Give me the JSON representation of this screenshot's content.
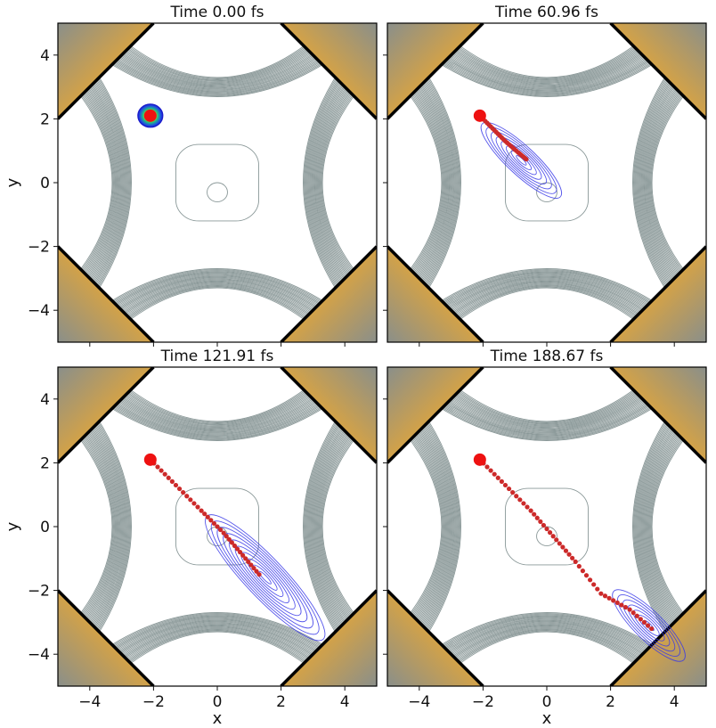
{
  "colors": {
    "contour": "#8a9898",
    "wall": "#000000",
    "wall_fill": "#e8a838",
    "wave_packet": "#3a3ae8",
    "trajectory": "#cc2a2a",
    "frame": "#000000"
  },
  "chart_data": [
    {
      "type": "contour",
      "panel": "top-left",
      "title": "Time      0.00 fs",
      "ylabel": "y",
      "xlabel": "",
      "xlim": [
        -5,
        5
      ],
      "ylim": [
        -5,
        5
      ],
      "xticks": [],
      "yticks": [
        "4",
        "2",
        "0",
        "−2",
        "−4"
      ],
      "start": [
        -2.1,
        2.1
      ],
      "trajectory": [],
      "packet_center": [
        -2.1,
        2.1
      ],
      "packet_kind": "initial"
    },
    {
      "type": "contour",
      "panel": "top-right",
      "title": "Time   60.96 fs",
      "ylabel": "",
      "xlabel": "",
      "xlim": [
        -5,
        5
      ],
      "ylim": [
        -5,
        5
      ],
      "xticks": [],
      "yticks": [],
      "start": [
        -2.1,
        2.1
      ],
      "trajectory": [
        [
          -2.1,
          2.1
        ],
        [
          -1.7,
          1.7
        ],
        [
          -1.3,
          1.3
        ],
        [
          -0.9,
          0.95
        ],
        [
          -0.6,
          0.7
        ]
      ],
      "packet_center": [
        -0.8,
        0.7
      ],
      "packet_kind": "spread1"
    },
    {
      "type": "contour",
      "panel": "bottom-left",
      "title": "Time   121.91 fs",
      "ylabel": "y",
      "xlabel": "",
      "xlim": [
        -5,
        5
      ],
      "ylim": [
        -5,
        5
      ],
      "xticks": [],
      "yticks": [
        "4",
        "2",
        "0",
        "−2",
        "−4"
      ],
      "start": [
        -2.1,
        2.1
      ],
      "trajectory": [
        [
          -2.1,
          2.1
        ],
        [
          -1.3,
          1.3
        ],
        [
          -0.5,
          0.5
        ],
        [
          0.2,
          -0.2
        ],
        [
          0.8,
          -0.9
        ],
        [
          1.4,
          -1.6
        ]
      ],
      "packet_center": [
        1.5,
        -1.6
      ],
      "packet_kind": "spread2"
    },
    {
      "type": "contour",
      "panel": "bottom-right",
      "title": "Time   188.67 fs",
      "ylabel": "",
      "xlabel": "x",
      "xlim": [
        -5,
        5
      ],
      "ylim": [
        -5,
        5
      ],
      "xticks": [
        "−4",
        "−2",
        "0",
        "2",
        "4"
      ],
      "yticks": [],
      "start": [
        -2.1,
        2.1
      ],
      "trajectory": [
        [
          -2.1,
          2.1
        ],
        [
          -1.3,
          1.3
        ],
        [
          -0.5,
          0.5
        ],
        [
          0.2,
          -0.3
        ],
        [
          0.9,
          -1.1
        ],
        [
          1.7,
          -2.1
        ],
        [
          2.6,
          -2.6
        ],
        [
          3.4,
          -3.3
        ]
      ],
      "packet_center": [
        3.2,
        -3.1
      ],
      "packet_kind": "spread3"
    },
    {
      "type": "axis-only",
      "panel": "bottom-left-x",
      "xlabel": "x",
      "xticks": [
        "−4",
        "−2",
        "0",
        "2",
        "4"
      ]
    }
  ]
}
